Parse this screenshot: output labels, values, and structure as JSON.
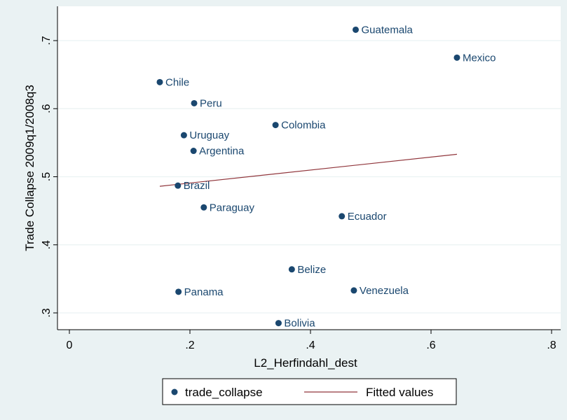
{
  "chart_data": {
    "type": "scatter",
    "xlabel": "L2_Herfindahl_dest",
    "ylabel": "Trade Collapse 2009q1/2008q3",
    "xlim": [
      0,
      0.8
    ],
    "ylim": [
      0.3,
      0.7
    ],
    "x_ticks": [
      0,
      0.2,
      0.4,
      0.6,
      0.8
    ],
    "y_ticks": [
      0.3,
      0.4,
      0.5,
      0.6,
      0.7
    ],
    "x_tick_labels": [
      "0",
      ".2",
      ".4",
      ".6",
      ".8"
    ],
    "y_tick_labels": [
      ".3",
      ".4",
      ".5",
      ".6",
      ".7"
    ],
    "grid": "horizontal",
    "legend_position": "bottom",
    "colors": {
      "points": "#1a476f",
      "fit": "#90353b",
      "plot_bg": "#ffffff",
      "outer_bg": "#eaf2f3",
      "grid": "#eaf2f3"
    },
    "series": [
      {
        "name": "trade_collapse",
        "type": "scatter",
        "points": [
          {
            "label": "Guatemala",
            "x": 0.475,
            "y": 0.716
          },
          {
            "label": "Mexico",
            "x": 0.643,
            "y": 0.675
          },
          {
            "label": "Chile",
            "x": 0.15,
            "y": 0.639
          },
          {
            "label": "Peru",
            "x": 0.207,
            "y": 0.608
          },
          {
            "label": "Colombia",
            "x": 0.342,
            "y": 0.576
          },
          {
            "label": "Uruguay",
            "x": 0.19,
            "y": 0.561
          },
          {
            "label": "Argentina",
            "x": 0.206,
            "y": 0.538
          },
          {
            "label": "Brazil",
            "x": 0.18,
            "y": 0.487
          },
          {
            "label": "Paraguay",
            "x": 0.223,
            "y": 0.455
          },
          {
            "label": "Ecuador",
            "x": 0.452,
            "y": 0.442
          },
          {
            "label": "Belize",
            "x": 0.369,
            "y": 0.364
          },
          {
            "label": "Panama",
            "x": 0.181,
            "y": 0.331
          },
          {
            "label": "Venezuela",
            "x": 0.472,
            "y": 0.333
          },
          {
            "label": "Bolivia",
            "x": 0.347,
            "y": 0.285
          }
        ]
      },
      {
        "name": "Fitted values",
        "type": "line",
        "x": [
          0.15,
          0.643
        ],
        "y": [
          0.486,
          0.533
        ]
      }
    ]
  }
}
